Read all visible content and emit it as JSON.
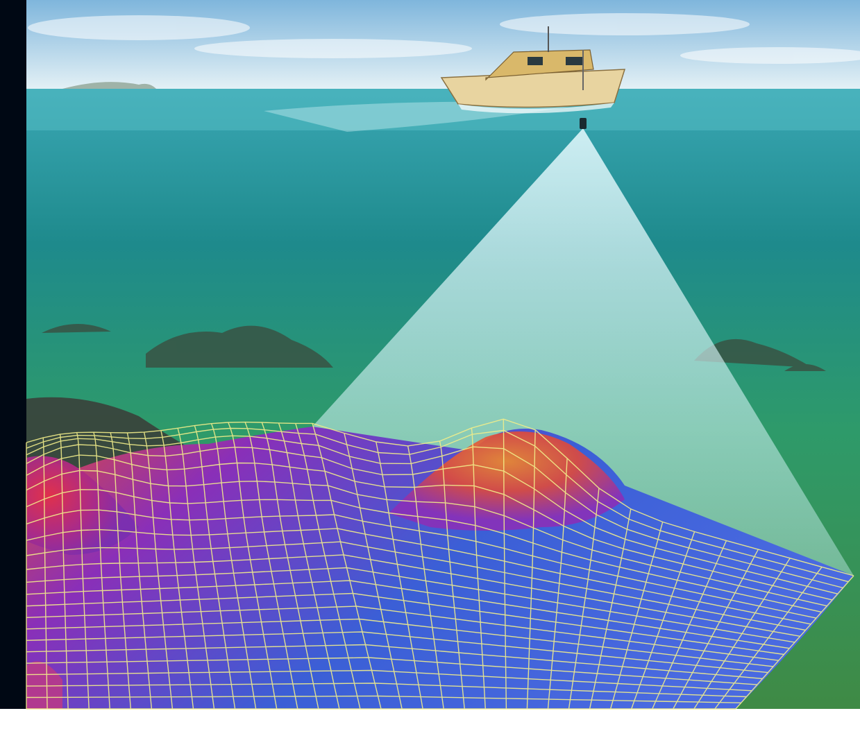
{
  "scene": {
    "colors": {
      "sky_top": "#7fb6dc",
      "sky_horizon": "#e6f2f6",
      "water_surface": "#2f9aa6",
      "water_mid": "#1e8a8c",
      "water_deep": "#2e9a6a",
      "seafloor": "#3f8a45",
      "rocks": "#3b4a3c",
      "sonar_beam": "#c8f2f0",
      "grid_low": "#3b5fd6",
      "grid_mid": "#8a2fb8",
      "grid_high": "#e04a3a",
      "grid_peak": "#f08a2a",
      "grid_lines": "#f2ee8a",
      "boat_hull": "#e8d4a0",
      "boat_cabin": "#d9b86a"
    },
    "icons": [
      "boat-icon",
      "sonar-transducer-icon"
    ]
  }
}
